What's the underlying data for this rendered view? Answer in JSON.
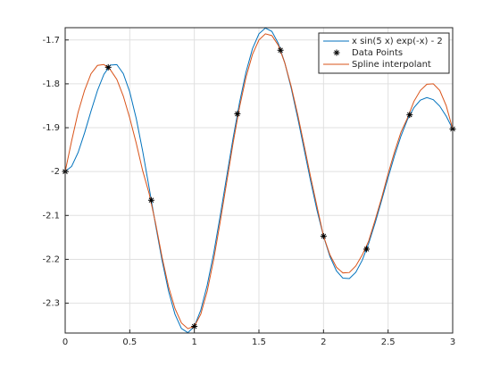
{
  "chart_data": {
    "type": "line",
    "x": [
      0,
      0.05,
      0.1,
      0.15,
      0.2,
      0.25,
      0.3,
      0.35,
      0.4,
      0.45,
      0.5,
      0.55,
      0.6,
      0.65,
      0.7,
      0.75,
      0.8,
      0.85,
      0.9,
      0.95,
      1,
      1.05,
      1.1,
      1.15,
      1.2,
      1.25,
      1.3,
      1.35,
      1.4,
      1.45,
      1.5,
      1.55,
      1.6,
      1.65,
      1.7,
      1.75,
      1.8,
      1.85,
      1.9,
      1.95,
      2,
      2.05,
      2.1,
      2.15,
      2.2,
      2.25,
      2.3,
      2.35,
      2.4,
      2.45,
      2.5,
      2.55,
      2.6,
      2.65,
      2.7,
      2.75,
      2.8,
      2.85,
      2.9,
      2.95,
      3
    ],
    "series": [
      {
        "name": "x sin(5 x) exp(-x) - 2",
        "color": "#0072bd",
        "values": [
          -2,
          -1.9882,
          -1.9566,
          -1.912,
          -1.8622,
          -1.8152,
          -1.7783,
          -1.7573,
          -1.7562,
          -1.7768,
          -1.8185,
          -1.8789,
          -1.9535,
          -2.0367,
          -2.1219,
          -2.2025,
          -2.272,
          -2.3251,
          -2.3577,
          -2.3671,
          -2.3528,
          -2.3156,
          -2.2583,
          -2.1857,
          -2.101,
          -2.0119,
          -1.9238,
          -1.8425,
          -1.7732,
          -1.72,
          -1.6861,
          -1.6729,
          -1.6804,
          -1.7077,
          -1.752,
          -1.81,
          -1.8774,
          -1.9493,
          -2.0214,
          -2.0887,
          -2.1472,
          -2.1938,
          -2.2263,
          -2.2429,
          -2.2438,
          -2.2295,
          -2.202,
          -2.1634,
          -2.1168,
          -2.0658,
          -2.0136,
          -1.9637,
          -1.9188,
          -1.8813,
          -1.8542,
          -1.8372,
          -1.8314,
          -1.8362,
          -1.8509,
          -1.8737,
          -1.9029
        ]
      },
      {
        "name": "Data Points",
        "color": "#000000",
        "marker": "*",
        "x": [
          0,
          0.3333,
          0.6667,
          1,
          1.3333,
          1.6667,
          2,
          2.3333,
          2.6667,
          3
        ],
        "values": [
          -2,
          -1.7623,
          -2.0652,
          -2.3528,
          -1.8685,
          -1.7234,
          -2.1472,
          -2.1767,
          -1.8706,
          -1.9029
        ]
      },
      {
        "name": "Spline interpolant",
        "color": "#d95319",
        "values": [
          -2,
          -1.93,
          -1.865,
          -1.815,
          -1.777,
          -1.758,
          -1.756,
          -1.768,
          -1.79,
          -1.828,
          -1.878,
          -1.935,
          -1.998,
          -2.05,
          -2.118,
          -2.195,
          -2.262,
          -2.312,
          -2.345,
          -2.358,
          -2.3528,
          -2.325,
          -2.272,
          -2.2,
          -2.115,
          -2.025,
          -1.935,
          -1.853,
          -1.785,
          -1.733,
          -1.7,
          -1.686,
          -1.69,
          -1.712,
          -1.752,
          -1.806,
          -1.87,
          -1.94,
          -2.012,
          -2.08,
          -2.1472,
          -2.19,
          -2.218,
          -2.231,
          -2.23,
          -2.215,
          -2.19,
          -2.158,
          -2.11,
          -2.06,
          -2.005,
          -1.955,
          -1.91,
          -1.878,
          -1.84,
          -1.815,
          -1.801,
          -1.8,
          -1.815,
          -1.85,
          -1.9029
        ]
      }
    ],
    "xlim": [
      0,
      3
    ],
    "xticks": [
      0,
      0.5,
      1,
      1.5,
      2,
      2.5,
      3
    ],
    "ylim": [
      -2.368,
      -1.672
    ],
    "yticks": [
      -2.3,
      -2.2,
      -2.1,
      -2,
      -1.9,
      -1.8,
      -1.7
    ],
    "grid": true,
    "legend": "northeast"
  }
}
